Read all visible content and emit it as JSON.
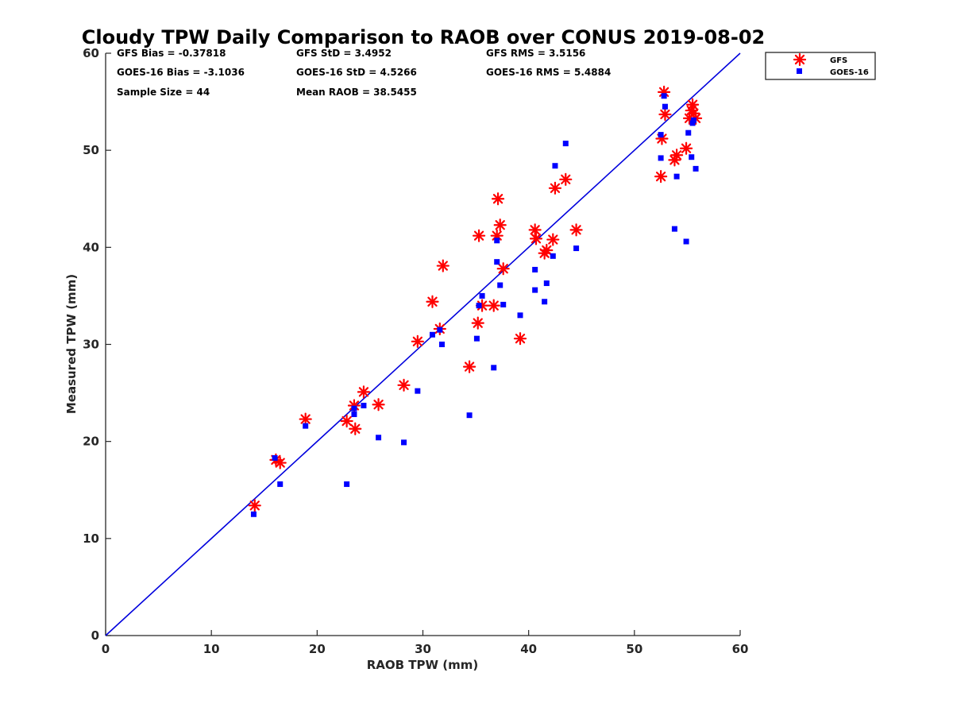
{
  "chart_data": {
    "type": "scatter",
    "title": "Cloudy TPW Daily Comparison to RAOB over CONUS 2019-08-02",
    "xlabel": "RAOB TPW (mm)",
    "ylabel": "Measured TPW (mm)",
    "xlim": [
      0,
      60
    ],
    "ylim": [
      0,
      60
    ],
    "xticks": [
      "0",
      "10",
      "20",
      "30",
      "40",
      "50",
      "60"
    ],
    "yticks": [
      "0",
      "10",
      "20",
      "30",
      "40",
      "50",
      "60"
    ],
    "grid": false,
    "legend_position": "outside top-right",
    "stats": [
      "GFS Bias = -0.37818",
      "GFS StD = 3.4952",
      "GFS RMS = 3.5156",
      "GOES-16 Bias = -3.1036",
      "GOES-16 StD = 4.5266",
      "GOES-16 RMS = 5.4884",
      "Sample Size = 44",
      "Mean RAOB = 38.5455"
    ],
    "reference_line": {
      "x": [
        0,
        60
      ],
      "y": [
        0,
        60
      ],
      "color": "#0000dd"
    },
    "series": [
      {
        "name": "GFS",
        "marker": "asterisk",
        "color": "#ff0000",
        "points": [
          [
            14.1,
            13.4
          ],
          [
            16.1,
            18.1
          ],
          [
            16.5,
            17.8
          ],
          [
            18.9,
            22.3
          ],
          [
            22.8,
            22.1
          ],
          [
            23.5,
            23.7
          ],
          [
            23.6,
            21.3
          ],
          [
            24.4,
            25.1
          ],
          [
            25.8,
            23.8
          ],
          [
            28.2,
            25.8
          ],
          [
            29.5,
            30.3
          ],
          [
            30.9,
            34.4
          ],
          [
            31.6,
            31.6
          ],
          [
            31.9,
            38.1
          ],
          [
            34.4,
            27.7
          ],
          [
            35.2,
            32.2
          ],
          [
            35.3,
            41.2
          ],
          [
            35.6,
            34.0
          ],
          [
            36.7,
            34.0
          ],
          [
            37.0,
            41.2
          ],
          [
            37.1,
            45.0
          ],
          [
            37.3,
            42.3
          ],
          [
            37.6,
            37.8
          ],
          [
            39.2,
            30.6
          ],
          [
            40.6,
            41.8
          ],
          [
            40.7,
            40.9
          ],
          [
            41.5,
            39.4
          ],
          [
            41.7,
            39.7
          ],
          [
            42.3,
            40.8
          ],
          [
            42.5,
            46.1
          ],
          [
            43.5,
            47.0
          ],
          [
            44.5,
            41.8
          ],
          [
            52.5,
            47.3
          ],
          [
            52.6,
            51.2
          ],
          [
            52.8,
            56.0
          ],
          [
            52.9,
            53.7
          ],
          [
            53.8,
            49.0
          ],
          [
            54.0,
            49.5
          ],
          [
            54.9,
            50.2
          ],
          [
            55.2,
            53.3
          ],
          [
            55.4,
            54.1
          ],
          [
            55.5,
            54.7
          ],
          [
            55.8,
            53.3
          ],
          [
            55.6,
            53.8
          ]
        ]
      },
      {
        "name": "GOES-16",
        "marker": "square",
        "color": "#0000ff",
        "points": [
          [
            14.0,
            12.5
          ],
          [
            16.0,
            18.3
          ],
          [
            16.5,
            15.6
          ],
          [
            18.9,
            21.6
          ],
          [
            22.8,
            15.6
          ],
          [
            23.5,
            23.4
          ],
          [
            23.5,
            22.8
          ],
          [
            24.4,
            23.7
          ],
          [
            25.8,
            20.4
          ],
          [
            28.2,
            19.9
          ],
          [
            29.5,
            25.2
          ],
          [
            30.9,
            31.0
          ],
          [
            31.6,
            31.5
          ],
          [
            31.8,
            30.0
          ],
          [
            34.4,
            22.7
          ],
          [
            35.1,
            30.6
          ],
          [
            35.3,
            34.0
          ],
          [
            35.6,
            35.0
          ],
          [
            36.7,
            27.6
          ],
          [
            37.0,
            40.7
          ],
          [
            37.0,
            38.5
          ],
          [
            37.3,
            36.1
          ],
          [
            37.6,
            34.1
          ],
          [
            39.2,
            33.0
          ],
          [
            40.6,
            37.7
          ],
          [
            40.6,
            35.6
          ],
          [
            41.5,
            34.4
          ],
          [
            41.7,
            36.3
          ],
          [
            42.3,
            39.1
          ],
          [
            42.5,
            48.4
          ],
          [
            43.5,
            50.7
          ],
          [
            44.5,
            39.9
          ],
          [
            52.5,
            49.2
          ],
          [
            52.5,
            51.6
          ],
          [
            52.8,
            55.6
          ],
          [
            52.9,
            54.5
          ],
          [
            53.8,
            41.9
          ],
          [
            54.0,
            47.3
          ],
          [
            54.9,
            40.6
          ],
          [
            55.1,
            51.8
          ],
          [
            55.4,
            49.3
          ],
          [
            55.5,
            52.8
          ],
          [
            55.8,
            48.1
          ],
          [
            55.6,
            53.1
          ]
        ]
      }
    ]
  }
}
